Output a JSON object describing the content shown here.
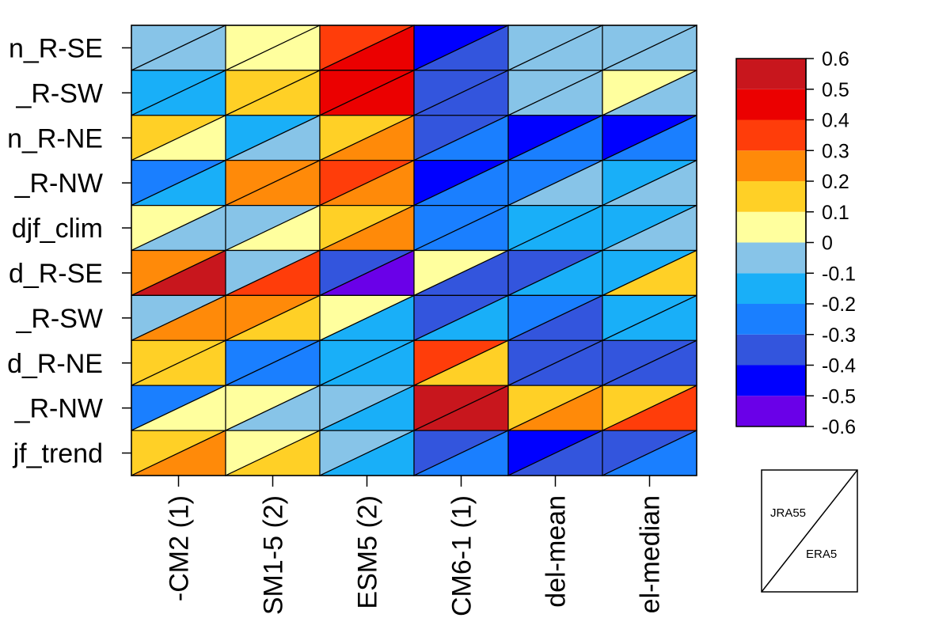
{
  "chart_data": {
    "type": "heatmap",
    "title": "",
    "rows": [
      "n_R-SE",
      "_R-SW",
      "n_R-NE",
      "_R-NW",
      "djf_clim",
      "d_R-SE",
      "_R-SW",
      "d_R-NE",
      "_R-NW",
      "jf_trend"
    ],
    "columns": [
      "-CM2 (1)",
      "SM1-5 (2)",
      "ESM5 (2)",
      "CM6-1 (1)",
      "del-mean",
      "el-median"
    ],
    "triangle_labels": {
      "upper": "JRA55",
      "lower": "ERA5"
    },
    "color_scale": {
      "breaks": [
        -0.6,
        -0.5,
        -0.4,
        -0.3,
        -0.2,
        -0.1,
        0,
        0.1,
        0.2,
        0.3,
        0.4,
        0.5,
        0.6
      ],
      "colors": [
        "#6a00e8",
        "#0000ff",
        "#3355dd",
        "#1a7fff",
        "#19aff8",
        "#87c4e8",
        "#ffff9e",
        "#ffd026",
        "#ff8a09",
        "#ff3d0a",
        "#eb0000",
        "#c8161d"
      ],
      "tick_labels": [
        "0.6",
        "0.5",
        "0.4",
        "0.3",
        "0.2",
        "0.1",
        "0",
        "-0.1",
        "-0.2",
        "-0.3",
        "-0.4",
        "-0.5",
        "-0.6"
      ]
    },
    "jra55": [
      [
        -0.05,
        0.05,
        0.35,
        -0.45,
        -0.05,
        -0.05
      ],
      [
        -0.15,
        0.15,
        0.45,
        -0.35,
        -0.05,
        0.05
      ],
      [
        0.15,
        -0.15,
        0.15,
        -0.35,
        -0.45,
        -0.45
      ],
      [
        -0.25,
        0.25,
        0.35,
        -0.45,
        -0.25,
        -0.15
      ],
      [
        0.05,
        -0.05,
        0.15,
        -0.25,
        -0.15,
        -0.15
      ],
      [
        0.25,
        -0.05,
        -0.35,
        0.05,
        -0.35,
        -0.15
      ],
      [
        -0.05,
        0.25,
        0.05,
        -0.35,
        -0.25,
        -0.15
      ],
      [
        0.15,
        -0.25,
        -0.15,
        0.35,
        -0.35,
        -0.35
      ],
      [
        -0.25,
        0.05,
        -0.05,
        0.55,
        0.15,
        0.15
      ],
      [
        0.15,
        0.05,
        -0.05,
        -0.35,
        -0.45,
        -0.35
      ]
    ],
    "era5": [
      [
        -0.05,
        0.05,
        0.45,
        -0.35,
        -0.05,
        -0.05
      ],
      [
        -0.15,
        0.15,
        0.45,
        -0.35,
        -0.05,
        -0.05
      ],
      [
        0.05,
        -0.05,
        0.25,
        -0.25,
        -0.25,
        -0.25
      ],
      [
        -0.15,
        0.25,
        0.25,
        -0.25,
        -0.05,
        -0.05
      ],
      [
        -0.05,
        0.05,
        0.25,
        -0.25,
        -0.15,
        -0.05
      ],
      [
        0.55,
        0.35,
        -0.55,
        -0.35,
        -0.15,
        0.15
      ],
      [
        0.25,
        0.15,
        -0.15,
        -0.15,
        -0.35,
        -0.15
      ],
      [
        0.15,
        -0.25,
        -0.15,
        0.15,
        -0.35,
        -0.35
      ],
      [
        0.05,
        -0.05,
        -0.15,
        0.55,
        0.25,
        0.35
      ],
      [
        0.25,
        0.15,
        -0.15,
        -0.25,
        -0.35,
        -0.25
      ]
    ]
  }
}
